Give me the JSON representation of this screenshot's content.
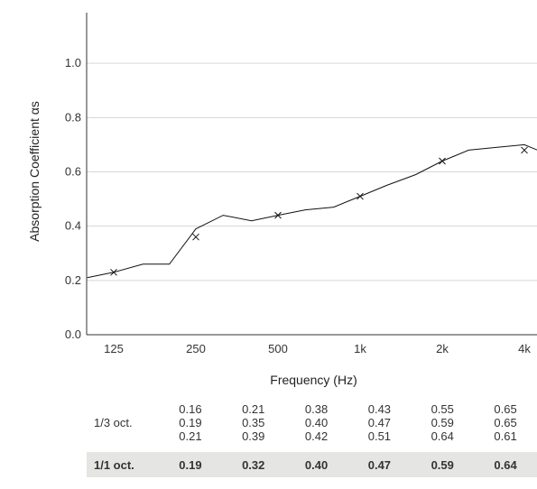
{
  "chart_data": {
    "type": "line",
    "title": "",
    "xlabel": "Frequency (Hz)",
    "ylabel": "Absorption Coefficient αs",
    "ylim": [
      0,
      1.2
    ],
    "y_ticks": [
      "0.0",
      "0.2",
      "0.4",
      "0.6",
      "0.8",
      "1.0"
    ],
    "x_scale": "log",
    "x_ticks": [
      "125",
      "250",
      "500",
      "1k",
      "2k",
      "4k"
    ],
    "grid": "horizontal",
    "series": [
      {
        "kind": "line",
        "x": [
          100,
          125,
          160,
          200,
          250,
          315,
          400,
          500,
          630,
          800,
          1000,
          1250,
          1600,
          2000,
          2500,
          3150,
          4000,
          5000
        ],
        "y": [
          0.21,
          0.23,
          0.26,
          0.26,
          0.39,
          0.44,
          0.42,
          0.44,
          0.46,
          0.47,
          0.51,
          0.55,
          0.59,
          0.64,
          0.68,
          0.69,
          0.7,
          0.66
        ]
      },
      {
        "kind": "markers",
        "x": [
          125,
          250,
          500,
          1000,
          2000,
          4000
        ],
        "y": [
          0.23,
          0.36,
          0.44,
          0.51,
          0.64,
          0.68
        ]
      }
    ]
  },
  "table": {
    "third_octave_label": "1/3 oct.",
    "third_octave": [
      [
        "0.16",
        "0.19",
        "0.21"
      ],
      [
        "0.21",
        "0.35",
        "0.39"
      ],
      [
        "0.38",
        "0.40",
        "0.42"
      ],
      [
        "0.43",
        "0.47",
        "0.51"
      ],
      [
        "0.55",
        "0.59",
        "0.64"
      ],
      [
        "0.65",
        "0.65",
        "0.61"
      ]
    ],
    "octave_label": "1/1 oct.",
    "octave": [
      "0.19",
      "0.32",
      "0.40",
      "0.47",
      "0.59",
      "0.64"
    ]
  }
}
